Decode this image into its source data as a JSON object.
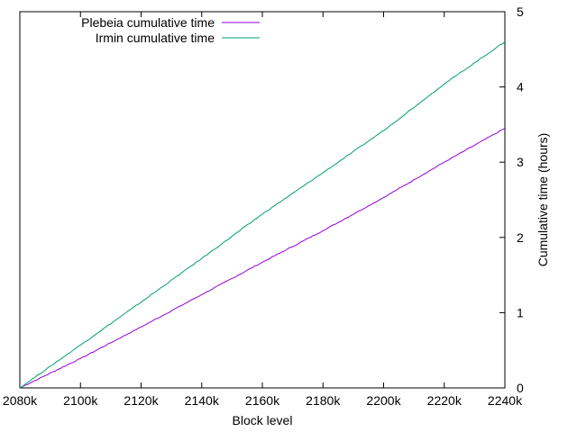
{
  "chart_data": {
    "type": "line",
    "title": "",
    "xlabel": "Block level",
    "ylabel": "Cumulative time (hours)",
    "y_axis_side": "right",
    "grid": false,
    "legend_position": "top-left",
    "xlim": [
      2080000,
      2240000
    ],
    "ylim": [
      0,
      5
    ],
    "x_ticks": [
      {
        "value": 2080000,
        "label": "2080k"
      },
      {
        "value": 2100000,
        "label": "2100k"
      },
      {
        "value": 2120000,
        "label": "2120k"
      },
      {
        "value": 2140000,
        "label": "2140k"
      },
      {
        "value": 2160000,
        "label": "2160k"
      },
      {
        "value": 2180000,
        "label": "2180k"
      },
      {
        "value": 2200000,
        "label": "2200k"
      },
      {
        "value": 2220000,
        "label": "2220k"
      },
      {
        "value": 2240000,
        "label": "2240k"
      }
    ],
    "y_ticks": [
      {
        "value": 0,
        "label": "0"
      },
      {
        "value": 1,
        "label": "1"
      },
      {
        "value": 2,
        "label": "2"
      },
      {
        "value": 3,
        "label": "3"
      },
      {
        "value": 4,
        "label": "4"
      },
      {
        "value": 5,
        "label": "5"
      }
    ],
    "x": [
      2080000,
      2100000,
      2120000,
      2140000,
      2160000,
      2180000,
      2200000,
      2220000,
      2240000
    ],
    "series": [
      {
        "name": "Plebeia cumulative time",
        "color": "#9400d3",
        "values": [
          0.0,
          0.39,
          0.81,
          1.24,
          1.67,
          2.09,
          2.53,
          3.0,
          3.45
        ]
      },
      {
        "name": "Irmin cumulative time",
        "color": "#009e73",
        "values": [
          0.0,
          0.57,
          1.14,
          1.72,
          2.31,
          2.86,
          3.42,
          4.04,
          4.6
        ]
      }
    ]
  }
}
